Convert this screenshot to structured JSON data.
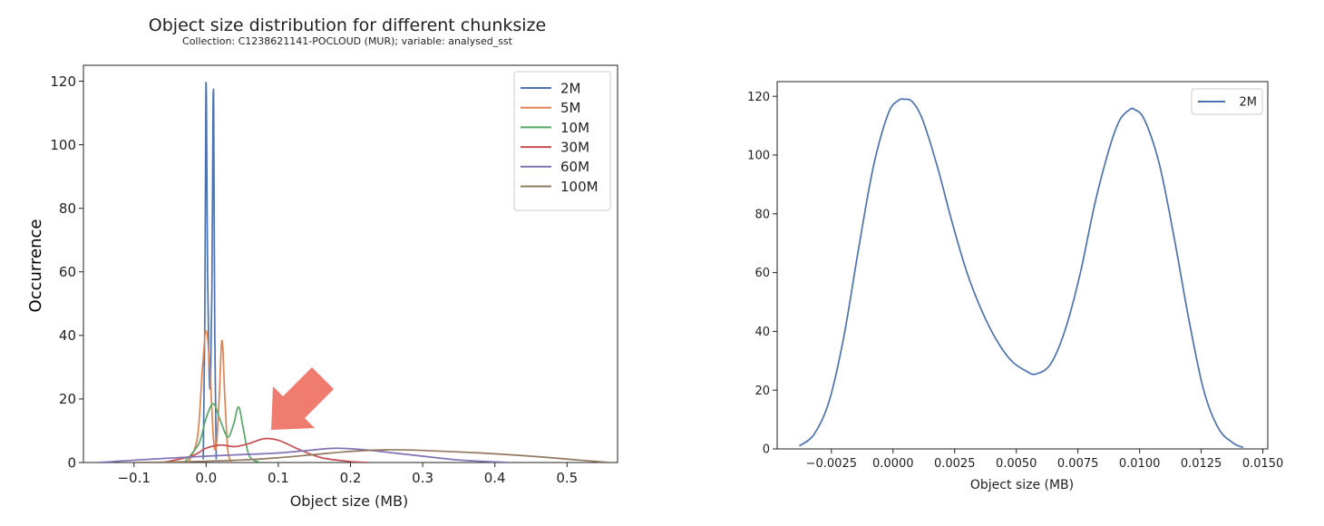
{
  "chart_data": [
    {
      "type": "line",
      "title": "Object size distribution for different chunksize",
      "subtitle": "Collection: C1238621141-POCLOUD (MUR); variable: analysed_sst",
      "xlabel": "Object size (MB)",
      "ylabel": "Occurrence",
      "xlim": [
        -0.17,
        0.57
      ],
      "ylim": [
        0,
        125
      ],
      "xticks": [
        -0.1,
        0.0,
        0.1,
        0.2,
        0.3,
        0.4,
        0.5
      ],
      "xtick_labels": [
        "−0.1",
        "0.0",
        "0.1",
        "0.2",
        "0.3",
        "0.4",
        "0.5"
      ],
      "yticks": [
        0,
        20,
        40,
        60,
        80,
        100,
        120
      ],
      "ytick_labels": [
        "0",
        "20",
        "40",
        "60",
        "80",
        "100",
        "120"
      ],
      "grid": false,
      "legend_position": "top-right",
      "annotation": "red-arrow",
      "series": [
        {
          "name": "2M",
          "color": "#4c72b0",
          "x": [
            -0.004,
            -0.002,
            -0.0005,
            0.0,
            0.0005,
            0.002,
            0.004,
            0.006,
            0.008,
            0.0095,
            0.01,
            0.0105,
            0.012,
            0.014
          ],
          "y": [
            1,
            40,
            110,
            119,
            110,
            60,
            30,
            25,
            55,
            110,
            115.5,
            110,
            40,
            1
          ]
        },
        {
          "name": "5M",
          "color": "#dd8452",
          "x": [
            -0.025,
            -0.012,
            -0.005,
            0.0,
            0.005,
            0.01,
            0.014,
            0.018,
            0.022,
            0.026,
            0.03,
            0.035
          ],
          "y": [
            0,
            8,
            30,
            41.5,
            30,
            8,
            5,
            20,
            38.5,
            20,
            4,
            0
          ]
        },
        {
          "name": "10M",
          "color": "#55a868",
          "x": [
            -0.03,
            -0.01,
            0.0,
            0.01,
            0.02,
            0.03,
            0.038,
            0.045,
            0.052,
            0.06,
            0.075
          ],
          "y": [
            0,
            6,
            14,
            18.5,
            13,
            8,
            12,
            17.5,
            10,
            2,
            0
          ]
        },
        {
          "name": "30M",
          "color": "#c44e52",
          "x": [
            -0.06,
            -0.02,
            0.0,
            0.02,
            0.04,
            0.06,
            0.08,
            0.1,
            0.13,
            0.16,
            0.2,
            0.225
          ],
          "y": [
            0,
            2,
            4.5,
            5.5,
            5,
            6,
            7.5,
            7,
            4,
            1.5,
            0.3,
            0
          ]
        },
        {
          "name": "60M",
          "color": "#8172b3",
          "x": [
            -0.15,
            -0.08,
            0.0,
            0.05,
            0.1,
            0.15,
            0.18,
            0.22,
            0.26,
            0.3,
            0.35,
            0.42
          ],
          "y": [
            0,
            1,
            2,
            2.5,
            3,
            4,
            4.5,
            4,
            3,
            2,
            0.8,
            0
          ]
        },
        {
          "name": "100M",
          "color": "#937860",
          "x": [
            -0.1,
            -0.02,
            0.05,
            0.1,
            0.15,
            0.2,
            0.25,
            0.3,
            0.38,
            0.45,
            0.52,
            0.56
          ],
          "y": [
            0,
            0.3,
            0.8,
            1.5,
            2.5,
            3.5,
            4,
            3.8,
            3,
            2,
            0.7,
            0
          ]
        }
      ]
    },
    {
      "type": "line",
      "xlabel": "Object size (MB)",
      "ylabel": "",
      "xlim": [
        -0.0047,
        0.0152
      ],
      "ylim": [
        0,
        125
      ],
      "xticks": [
        -0.0025,
        0.0,
        0.0025,
        0.005,
        0.0075,
        0.01,
        0.0125,
        0.015
      ],
      "xtick_labels": [
        "−0.0025",
        "0.0000",
        "0.0025",
        "0.0050",
        "0.0075",
        "0.0100",
        "0.0125",
        "0.0150"
      ],
      "yticks": [
        0,
        20,
        40,
        60,
        80,
        100,
        120
      ],
      "ytick_labels": [
        "0",
        "20",
        "40",
        "60",
        "80",
        "100",
        "120"
      ],
      "grid": false,
      "legend_position": "top-right",
      "series": [
        {
          "name": "2M",
          "color": "#4c72b0",
          "x": [
            -0.0038,
            -0.0032,
            -0.0026,
            -0.002,
            -0.0014,
            -0.0008,
            -0.0002,
            0.0002,
            0.0005,
            0.0008,
            0.0012,
            0.0018,
            0.0024,
            0.003,
            0.0036,
            0.0042,
            0.0048,
            0.0054,
            0.0058,
            0.0064,
            0.007,
            0.0076,
            0.0082,
            0.0088,
            0.0092,
            0.0096,
            0.0098,
            0.0102,
            0.0108,
            0.0114,
            0.012,
            0.0126,
            0.0132,
            0.0138,
            0.0142
          ],
          "y": [
            1,
            5,
            16,
            38,
            68,
            96,
            114,
            118.5,
            119,
            118,
            112,
            96,
            77,
            60,
            47,
            37,
            30,
            26.5,
            25.5,
            29,
            41,
            60,
            84,
            103,
            112,
            115.5,
            115.5,
            112,
            97,
            72,
            44,
            20,
            7,
            2,
            0.5
          ]
        }
      ]
    }
  ]
}
